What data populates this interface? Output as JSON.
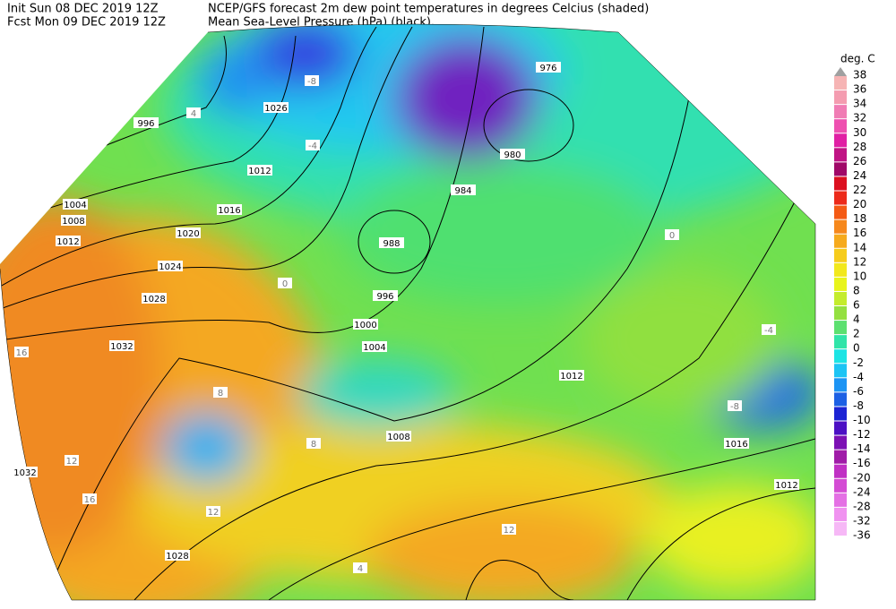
{
  "header": {
    "init": "Init  Sun 08 DEC 2019 12Z",
    "forecast": "Fcst Mon 09 DEC 2019 12Z",
    "title": "NCEP/GFS forecast 2m dew point temperatures in degrees Celcius (shaded)",
    "subtitle": "Mean Sea-Level Pressure (hPa) (black)."
  },
  "legend": {
    "title": "deg. C",
    "labels": [
      "38",
      "36",
      "34",
      "32",
      "30",
      "28",
      "26",
      "24",
      "22",
      "20",
      "18",
      "16",
      "14",
      "12",
      "10",
      "8",
      "6",
      "4",
      "2",
      "0",
      "-2",
      "-4",
      "-6",
      "-8",
      "-10",
      "-12",
      "-14",
      "-16",
      "-20",
      "-24",
      "-28",
      "-32",
      "-36"
    ],
    "top_color": "#a0a0a0",
    "colors": [
      "#f6b4b4",
      "#f49cb0",
      "#f07cb4",
      "#ee50b0",
      "#e020a4",
      "#c01484",
      "#a00868",
      "#dc1020",
      "#ec2a1a",
      "#f45a14",
      "#f6881c",
      "#f6aa1c",
      "#f6cc1c",
      "#f2e81c",
      "#e8f41c",
      "#c4ec2c",
      "#94e040",
      "#5ce070",
      "#30e4a8",
      "#1ce4e4",
      "#1cc4f4",
      "#1c94f4",
      "#1c60e4",
      "#1c24d4",
      "#4c10c4",
      "#7c10b4",
      "#a01ca8",
      "#c030c4",
      "#d44cd4",
      "#e470e4",
      "#f092f0",
      "#f6b8f6"
    ]
  },
  "map": {
    "isobar_labels": [
      "996",
      "1026",
      "1012",
      "1004",
      "1016",
      "1008",
      "1012",
      "1020",
      "1024",
      "1028",
      "1032",
      "1032",
      "976",
      "980",
      "984",
      "988",
      "996",
      "1000",
      "1004",
      "1012",
      "1008",
      "1016",
      "1012",
      "1028"
    ],
    "dewpoint_labels": [
      "-4",
      "-8",
      "0",
      "4",
      "16",
      "8",
      "12",
      "16",
      "12",
      "4",
      "0",
      "-4",
      "-8",
      "8",
      "12"
    ]
  }
}
